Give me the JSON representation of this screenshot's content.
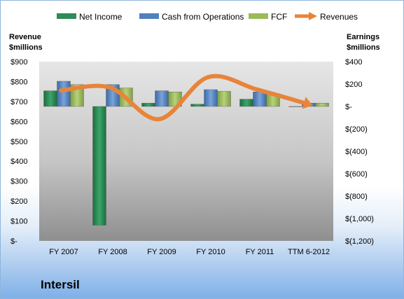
{
  "chart_data": {
    "type": "bar",
    "company": "Intersil",
    "categories": [
      "FY 2007",
      "FY 2008",
      "FY 2009",
      "FY 2010",
      "FY 2011",
      "TTM 6-2012"
    ],
    "left_axis": {
      "title_line1": "Revenue",
      "title_line2": "$millions",
      "ylim": [
        0,
        900
      ],
      "ticks": [
        0,
        100,
        200,
        300,
        400,
        500,
        600,
        700,
        800,
        900
      ],
      "tick_labels": [
        "$-",
        "$100",
        "$200",
        "$300",
        "$400",
        "$500",
        "$600",
        "$700",
        "$800",
        "$900"
      ]
    },
    "right_axis": {
      "title_line1": "Earnings",
      "title_line2": "$millions",
      "ylim": [
        -1200,
        400
      ],
      "ticks": [
        400,
        200,
        0,
        -200,
        -400,
        -600,
        -800,
        -1000,
        -1200
      ],
      "tick_labels": [
        "$400",
        "$200",
        "$-",
        "$(200)",
        "$(400)",
        "$(600)",
        "$(800)",
        "$(1,000)",
        "$(1,200)"
      ]
    },
    "series": [
      {
        "name": "Net Income",
        "axis": "right",
        "type": "bar",
        "color": "#2e8b57",
        "values": [
          140,
          -1060,
          30,
          20,
          65,
          0
        ]
      },
      {
        "name": "Cash from Operations",
        "axis": "right",
        "type": "bar",
        "color": "#4f81bd",
        "values": [
          225,
          195,
          140,
          150,
          130,
          30
        ]
      },
      {
        "name": "FCF",
        "axis": "right",
        "type": "bar",
        "color": "#9bbb59",
        "values": [
          195,
          165,
          130,
          135,
          115,
          30
        ]
      },
      {
        "name": "Revenues",
        "axis": "left",
        "type": "line",
        "color": "#e8843a",
        "values": [
          755,
          770,
          611,
          822,
          760,
          690
        ]
      }
    ],
    "legend_position": "top",
    "grid": false
  }
}
